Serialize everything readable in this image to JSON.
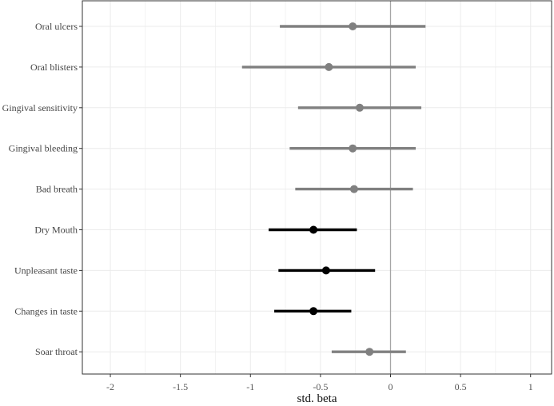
{
  "chart_data": {
    "type": "forest",
    "xlabel": "std. beta",
    "xlim": [
      -2.2,
      1.15
    ],
    "x_ticks": [
      -2,
      -1.5,
      -1,
      -0.5,
      0,
      0.5,
      1
    ],
    "x_tick_labels": [
      "-2",
      "-1.5",
      "-1",
      "-0.5",
      "0",
      "0.5",
      "1"
    ],
    "reference_line": 0,
    "grid": true,
    "colors": {
      "significant": "#000000",
      "nonsignificant": "#808080",
      "reference": "#a6a6a6",
      "grid": "#ebebeb"
    },
    "items": [
      {
        "label": "Oral ulcers",
        "estimate": -0.27,
        "ci_low": -0.79,
        "ci_high": 0.25,
        "significant": false
      },
      {
        "label": "Oral blisters",
        "estimate": -0.44,
        "ci_low": -1.06,
        "ci_high": 0.18,
        "significant": false
      },
      {
        "label": "Gingival sensitivity",
        "estimate": -0.22,
        "ci_low": -0.66,
        "ci_high": 0.22,
        "significant": false
      },
      {
        "label": "Gingival bleeding",
        "estimate": -0.27,
        "ci_low": -0.72,
        "ci_high": 0.18,
        "significant": false
      },
      {
        "label": "Bad breath",
        "estimate": -0.26,
        "ci_low": -0.68,
        "ci_high": 0.16,
        "significant": false
      },
      {
        "label": "Dry Mouth",
        "estimate": -0.55,
        "ci_low": -0.87,
        "ci_high": -0.24,
        "significant": true
      },
      {
        "label": "Unpleasant taste",
        "estimate": -0.46,
        "ci_low": -0.8,
        "ci_high": -0.11,
        "significant": true
      },
      {
        "label": "Changes in taste",
        "estimate": -0.55,
        "ci_low": -0.83,
        "ci_high": -0.28,
        "significant": true
      },
      {
        "label": "Soar throat",
        "estimate": -0.15,
        "ci_low": -0.42,
        "ci_high": 0.11,
        "significant": false
      }
    ]
  }
}
